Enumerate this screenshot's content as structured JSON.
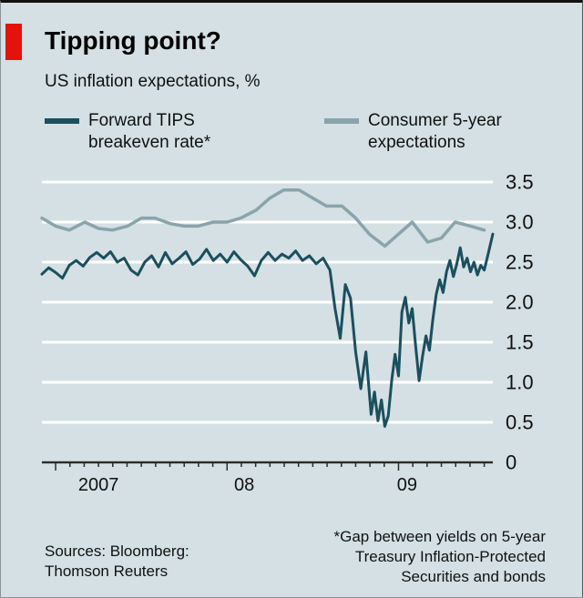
{
  "header": {
    "title": "Tipping point?",
    "subtitle": "US inflation expectations, %"
  },
  "legend": [
    {
      "label": "Forward TIPS\nbreakeven rate*",
      "color": "#1b4f5e"
    },
    {
      "label": "Consumer 5-year\nexpectations",
      "color": "#8aa4ac"
    }
  ],
  "footer": {
    "sources": "Sources: Bloomberg:\nThomson Reuters",
    "footnote": "*Gap between yields on 5-year\nTreasury Inflation-Protected\nSecurities and bonds"
  },
  "colors": {
    "background": "#d4e0e3",
    "red_tab": "#e3120b",
    "gridline": "#ffffff",
    "axis": "#2b2b2b",
    "text": "#111111",
    "series_dark": "#1b4f5e",
    "series_light": "#8aa4ac"
  },
  "chart_data": {
    "type": "line",
    "title": "Tipping point?",
    "subtitle": "US inflation expectations, %",
    "ylabel": "%",
    "ylim": [
      0,
      3.5
    ],
    "yticks": [
      0,
      0.5,
      1.0,
      1.5,
      2.0,
      2.5,
      3.0,
      3.5
    ],
    "ytick_labels": [
      "0",
      "0.5",
      "1.0",
      "1.5",
      "2.0",
      "2.5",
      "3.0",
      "3.5"
    ],
    "xlim": [
      2006.92,
      2009.55
    ],
    "grid": "horizontal-white",
    "legend_position": "top",
    "x_year_labels": [
      {
        "label": "2007",
        "x": 2007.25
      },
      {
        "label": "08",
        "x": 2008.1
      },
      {
        "label": "09",
        "x": 2009.05
      }
    ],
    "series": [
      {
        "name": "Consumer 5-year expectations",
        "color": "#8aa4ac",
        "width": 3.5,
        "points": [
          [
            2006.92,
            3.05
          ],
          [
            2007.0,
            2.95
          ],
          [
            2007.08,
            2.9
          ],
          [
            2007.17,
            3.0
          ],
          [
            2007.25,
            2.92
          ],
          [
            2007.33,
            2.9
          ],
          [
            2007.42,
            2.95
          ],
          [
            2007.5,
            3.05
          ],
          [
            2007.58,
            3.05
          ],
          [
            2007.67,
            2.98
          ],
          [
            2007.75,
            2.95
          ],
          [
            2007.83,
            2.95
          ],
          [
            2007.92,
            3.0
          ],
          [
            2008.0,
            3.0
          ],
          [
            2008.08,
            3.05
          ],
          [
            2008.17,
            3.15
          ],
          [
            2008.25,
            3.3
          ],
          [
            2008.33,
            3.4
          ],
          [
            2008.42,
            3.4
          ],
          [
            2008.5,
            3.3
          ],
          [
            2008.58,
            3.2
          ],
          [
            2008.67,
            3.2
          ],
          [
            2008.75,
            3.05
          ],
          [
            2008.83,
            2.85
          ],
          [
            2008.92,
            2.7
          ],
          [
            2009.0,
            2.85
          ],
          [
            2009.08,
            3.0
          ],
          [
            2009.17,
            2.75
          ],
          [
            2009.25,
            2.8
          ],
          [
            2009.33,
            3.0
          ],
          [
            2009.42,
            2.95
          ],
          [
            2009.5,
            2.9
          ]
        ]
      },
      {
        "name": "Forward TIPS breakeven rate*",
        "color": "#1b4f5e",
        "width": 3,
        "points": [
          [
            2006.92,
            2.35
          ],
          [
            2006.96,
            2.43
          ],
          [
            2007.0,
            2.37
          ],
          [
            2007.04,
            2.3
          ],
          [
            2007.08,
            2.46
          ],
          [
            2007.12,
            2.52
          ],
          [
            2007.16,
            2.45
          ],
          [
            2007.2,
            2.56
          ],
          [
            2007.24,
            2.62
          ],
          [
            2007.28,
            2.55
          ],
          [
            2007.32,
            2.63
          ],
          [
            2007.36,
            2.5
          ],
          [
            2007.4,
            2.55
          ],
          [
            2007.44,
            2.4
          ],
          [
            2007.48,
            2.34
          ],
          [
            2007.52,
            2.5
          ],
          [
            2007.56,
            2.58
          ],
          [
            2007.6,
            2.44
          ],
          [
            2007.64,
            2.62
          ],
          [
            2007.68,
            2.48
          ],
          [
            2007.72,
            2.55
          ],
          [
            2007.76,
            2.63
          ],
          [
            2007.8,
            2.47
          ],
          [
            2007.84,
            2.54
          ],
          [
            2007.88,
            2.66
          ],
          [
            2007.92,
            2.52
          ],
          [
            2007.96,
            2.6
          ],
          [
            2008.0,
            2.5
          ],
          [
            2008.04,
            2.63
          ],
          [
            2008.08,
            2.53
          ],
          [
            2008.12,
            2.45
          ],
          [
            2008.16,
            2.33
          ],
          [
            2008.2,
            2.52
          ],
          [
            2008.24,
            2.62
          ],
          [
            2008.28,
            2.52
          ],
          [
            2008.32,
            2.6
          ],
          [
            2008.36,
            2.55
          ],
          [
            2008.4,
            2.64
          ],
          [
            2008.44,
            2.52
          ],
          [
            2008.48,
            2.58
          ],
          [
            2008.52,
            2.48
          ],
          [
            2008.56,
            2.55
          ],
          [
            2008.6,
            2.4
          ],
          [
            2008.63,
            1.92
          ],
          [
            2008.66,
            1.55
          ],
          [
            2008.69,
            2.22
          ],
          [
            2008.72,
            2.05
          ],
          [
            2008.75,
            1.38
          ],
          [
            2008.78,
            0.92
          ],
          [
            2008.81,
            1.38
          ],
          [
            2008.84,
            0.6
          ],
          [
            2008.86,
            0.88
          ],
          [
            2008.88,
            0.52
          ],
          [
            2008.9,
            0.78
          ],
          [
            2008.92,
            0.45
          ],
          [
            2008.94,
            0.58
          ],
          [
            2008.96,
            1.02
          ],
          [
            2008.98,
            1.35
          ],
          [
            2009.0,
            1.08
          ],
          [
            2009.02,
            1.88
          ],
          [
            2009.04,
            2.06
          ],
          [
            2009.06,
            1.74
          ],
          [
            2009.08,
            1.92
          ],
          [
            2009.1,
            1.45
          ],
          [
            2009.12,
            1.02
          ],
          [
            2009.14,
            1.32
          ],
          [
            2009.16,
            1.58
          ],
          [
            2009.18,
            1.4
          ],
          [
            2009.2,
            1.78
          ],
          [
            2009.22,
            2.1
          ],
          [
            2009.24,
            2.28
          ],
          [
            2009.26,
            2.12
          ],
          [
            2009.28,
            2.38
          ],
          [
            2009.3,
            2.52
          ],
          [
            2009.32,
            2.32
          ],
          [
            2009.34,
            2.48
          ],
          [
            2009.36,
            2.68
          ],
          [
            2009.38,
            2.44
          ],
          [
            2009.4,
            2.55
          ],
          [
            2009.42,
            2.38
          ],
          [
            2009.44,
            2.5
          ],
          [
            2009.46,
            2.34
          ],
          [
            2009.48,
            2.46
          ],
          [
            2009.5,
            2.4
          ],
          [
            2009.52,
            2.58
          ],
          [
            2009.55,
            2.85
          ]
        ]
      }
    ]
  }
}
